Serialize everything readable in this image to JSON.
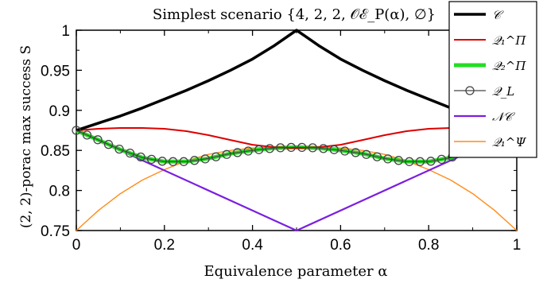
{
  "chart_data": {
    "type": "line",
    "title": "Simplest scenario {4, 2, 2, 𝒪ℰ_P(α), ∅}",
    "xlabel": "Equivalence parameter α",
    "ylabel": "(2, 2)-porac max success S",
    "xlim": [
      0,
      1
    ],
    "ylim": [
      0.75,
      1.0
    ],
    "xticks": [
      0,
      0.2,
      0.4,
      0.6,
      0.8,
      1
    ],
    "xtick_labels": [
      "0",
      "0.2",
      "0.4",
      "0.6",
      "0.8",
      "1"
    ],
    "yticks": [
      0.75,
      0.8,
      0.85,
      0.9,
      0.95,
      1.0
    ],
    "ytick_labels": [
      "0.75",
      "0.8",
      "0.85",
      "0.9",
      "0.95",
      "1"
    ],
    "grid": false,
    "legend_position": "top-right",
    "series": [
      {
        "name": "𝒞",
        "color": "#000000",
        "x": [
          0,
          0.05,
          0.1,
          0.15,
          0.2,
          0.25,
          0.3,
          0.35,
          0.4,
          0.45,
          0.5,
          0.55,
          0.6,
          0.65,
          0.7,
          0.75,
          0.8,
          0.85,
          0.9,
          0.95,
          1
        ],
        "y": [
          0.875,
          0.884,
          0.893,
          0.903,
          0.914,
          0.925,
          0.937,
          0.95,
          0.964,
          0.981,
          1.0,
          0.981,
          0.964,
          0.95,
          0.937,
          0.925,
          0.914,
          0.903,
          0.893,
          0.884,
          0.875
        ]
      },
      {
        "name": "𝒬₁^Π",
        "color": "#dd0000",
        "x": [
          0,
          0.05,
          0.1,
          0.15,
          0.2,
          0.25,
          0.3,
          0.35,
          0.4,
          0.45,
          0.5,
          0.55,
          0.6,
          0.65,
          0.7,
          0.75,
          0.8,
          0.85,
          0.9,
          0.95,
          1
        ],
        "y": [
          0.875,
          0.877,
          0.878,
          0.878,
          0.877,
          0.874,
          0.869,
          0.863,
          0.857,
          0.854,
          0.853,
          0.854,
          0.857,
          0.863,
          0.869,
          0.874,
          0.877,
          0.878,
          0.878,
          0.877,
          0.875
        ]
      },
      {
        "name": "𝒬₂^Π",
        "color": "#22dd22",
        "x": [
          0,
          0.05,
          0.1,
          0.15,
          0.2,
          0.25,
          0.3,
          0.35,
          0.4,
          0.45,
          0.5,
          0.55,
          0.6,
          0.65,
          0.7,
          0.75,
          0.8,
          0.85,
          0.9,
          0.95,
          1
        ],
        "y": [
          0.875,
          0.863,
          0.851,
          0.841,
          0.836,
          0.836,
          0.84,
          0.846,
          0.85,
          0.853,
          0.854,
          0.853,
          0.85,
          0.846,
          0.84,
          0.836,
          0.836,
          0.841,
          0.851,
          0.863,
          0.875
        ]
      },
      {
        "name": "𝒬_L",
        "color": "#444444",
        "x": [
          0,
          0.05,
          0.1,
          0.15,
          0.2,
          0.25,
          0.3,
          0.35,
          0.4,
          0.45,
          0.5,
          0.55,
          0.6,
          0.65,
          0.7,
          0.75,
          0.8,
          0.85,
          0.9,
          0.95,
          1
        ],
        "y": [
          0.875,
          0.863,
          0.851,
          0.841,
          0.836,
          0.836,
          0.84,
          0.846,
          0.85,
          0.853,
          0.854,
          0.853,
          0.85,
          0.846,
          0.84,
          0.836,
          0.836,
          0.841,
          0.851,
          0.863,
          0.875
        ]
      },
      {
        "name": "𝒩𝒞",
        "color": "#7a1fe0",
        "x": [
          0,
          0.5,
          1
        ],
        "y": [
          0.875,
          0.75,
          0.875
        ]
      },
      {
        "name": "𝒬₁^Ψ",
        "color": "#ff8c1a",
        "x": [
          0,
          0.05,
          0.1,
          0.15,
          0.2,
          0.25,
          0.3,
          0.35,
          0.4,
          0.45,
          0.5,
          0.55,
          0.6,
          0.65,
          0.7,
          0.75,
          0.8,
          0.85,
          0.9,
          0.95,
          1
        ],
        "y": [
          0.75,
          0.775,
          0.796,
          0.813,
          0.826,
          0.837,
          0.845,
          0.85,
          0.853,
          0.854,
          0.854,
          0.854,
          0.853,
          0.85,
          0.845,
          0.837,
          0.826,
          0.813,
          0.796,
          0.775,
          0.75
        ]
      }
    ]
  }
}
